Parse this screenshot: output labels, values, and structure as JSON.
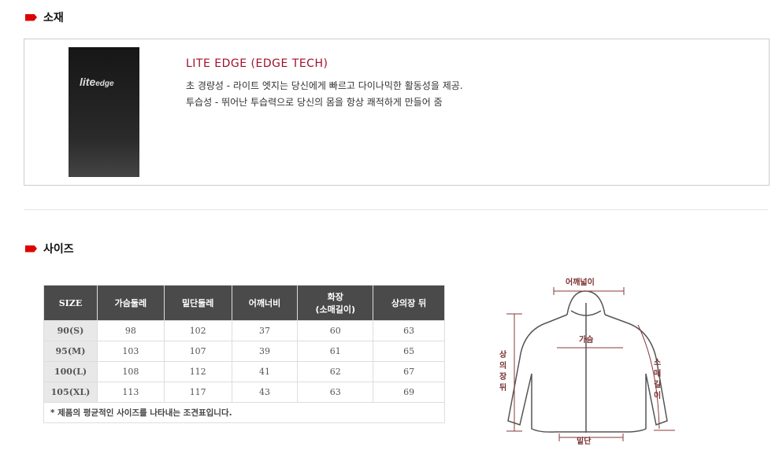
{
  "material": {
    "heading": "소재",
    "logo_text": "lite edge",
    "title": "LITE EDGE (EDGE TECH)",
    "lines": [
      "초 경량성 - 라이트 엣지는 당신에게 빠르고 다이나믹한 활동성을 제공.",
      "투습성 - 뛰어난 투습력으로 당신의 몸을 항상 쾌적하게 만들어 줌"
    ]
  },
  "size": {
    "heading": "사이즈",
    "headers": [
      "SIZE",
      "가슴둘레",
      "밑단둘레",
      "어깨너비",
      "화장\n(소매길이)",
      "상의장 뒤"
    ],
    "rows": [
      [
        "90(S)",
        "98",
        "102",
        "37",
        "60",
        "63"
      ],
      [
        "95(M)",
        "103",
        "107",
        "39",
        "61",
        "65"
      ],
      [
        "100(L)",
        "108",
        "112",
        "41",
        "62",
        "67"
      ],
      [
        "105(XL)",
        "113",
        "117",
        "43",
        "63",
        "69"
      ]
    ],
    "note": "* 제품의 평균적인 사이즈를 나타내는 조견표입니다."
  },
  "diagram": {
    "shoulder": "어깨넓이",
    "chest": "가슴",
    "back_length": "상의장뒤",
    "sleeve": "소매길이",
    "hem": "밑단"
  },
  "colors": {
    "accent": "#a0102a",
    "flag": "#dd0000",
    "header_bg": "#4a4a4a"
  }
}
